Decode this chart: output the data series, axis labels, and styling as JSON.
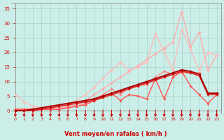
{
  "xlabel": "Vent moyen/en rafales ( km/h )",
  "xlim": [
    -0.5,
    23.5
  ],
  "ylim": [
    0,
    37
  ],
  "yticks": [
    0,
    5,
    10,
    15,
    20,
    25,
    30,
    35
  ],
  "xticks": [
    0,
    1,
    2,
    3,
    4,
    5,
    6,
    7,
    8,
    9,
    10,
    11,
    12,
    13,
    14,
    15,
    16,
    17,
    18,
    19,
    20,
    21,
    22,
    23
  ],
  "bg_color": "#cceee8",
  "grid_color": "#aad8d0",
  "arrow_color": "#cc0000",
  "tick_color": "#cc0000",
  "label_color": "#cc0000",
  "lines": [
    {
      "color": "#ffaaaa",
      "lw": 1.0,
      "y": [
        0.5,
        0.5,
        0.5,
        0.5,
        0.5,
        0.5,
        1.5,
        2.0,
        3.5,
        5.5,
        7.5,
        9.5,
        11.5,
        13.5,
        15.5,
        17.5,
        19.5,
        21.5,
        23.5,
        34.0,
        22.0,
        27.0,
        14.0,
        19.0
      ]
    },
    {
      "color": "#ffbbbb",
      "lw": 1.0,
      "y": [
        5.5,
        3.0,
        1.5,
        1.0,
        1.0,
        1.0,
        2.0,
        3.5,
        5.5,
        8.0,
        11.0,
        14.0,
        16.5,
        14.0,
        15.0,
        16.5,
        26.5,
        20.0,
        14.0,
        28.0,
        21.0,
        14.0,
        20.0,
        19.0
      ]
    },
    {
      "color": "#ff8888",
      "lw": 1.0,
      "y": [
        0.5,
        0.5,
        0.5,
        0.5,
        0.5,
        0.5,
        1.0,
        1.5,
        2.5,
        4.0,
        5.5,
        7.5,
        5.5,
        8.0,
        8.5,
        9.0,
        11.5,
        13.5,
        12.5,
        13.0,
        13.0,
        13.0,
        5.5,
        5.5
      ]
    },
    {
      "color": "#ff5555",
      "lw": 1.0,
      "y": [
        0.5,
        0.5,
        0.5,
        0.5,
        0.5,
        0.5,
        1.0,
        1.5,
        2.0,
        3.5,
        5.0,
        6.0,
        3.5,
        5.5,
        5.0,
        4.0,
        11.0,
        4.0,
        11.5,
        13.5,
        8.5,
        5.5,
        2.5,
        5.5
      ]
    },
    {
      "color": "#dd2222",
      "lw": 1.2,
      "y": [
        0.0,
        0.0,
        0.0,
        0.5,
        1.0,
        1.5,
        2.0,
        2.5,
        3.0,
        3.5,
        4.5,
        5.5,
        6.5,
        7.5,
        8.5,
        9.5,
        10.5,
        11.5,
        12.5,
        13.5,
        13.0,
        12.0,
        5.5,
        5.5
      ]
    },
    {
      "color": "#aa0000",
      "lw": 1.4,
      "y": [
        0.0,
        0.0,
        0.5,
        1.0,
        1.5,
        2.0,
        2.5,
        3.0,
        3.5,
        4.0,
        5.0,
        6.0,
        7.0,
        8.0,
        9.0,
        10.0,
        11.0,
        12.0,
        13.0,
        14.0,
        13.5,
        12.5,
        6.0,
        6.0
      ]
    }
  ]
}
